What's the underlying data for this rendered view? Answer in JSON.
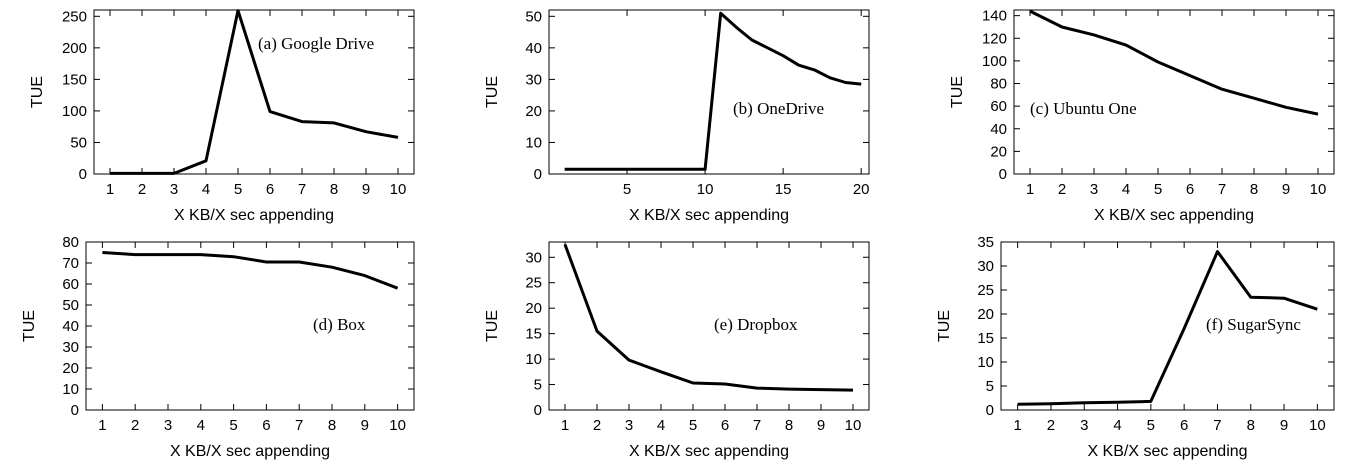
{
  "chart_data": [
    {
      "type": "line",
      "title": "(a) Google Drive",
      "xlabel": "X KB/X sec appending",
      "ylabel": "TUE",
      "xlim": [
        0.5,
        10.5
      ],
      "ylim": [
        0,
        260
      ],
      "xticks": [
        1,
        2,
        3,
        4,
        5,
        6,
        7,
        8,
        9,
        10
      ],
      "yticks": [
        0,
        50,
        100,
        150,
        200,
        250
      ],
      "x": [
        1,
        2,
        3,
        4,
        5,
        6,
        7,
        8,
        9,
        10
      ],
      "y": [
        1,
        1,
        1,
        21,
        259,
        99,
        83,
        81,
        67,
        58
      ],
      "grid": false
    },
    {
      "type": "line",
      "title": "(b) OneDrive",
      "xlabel": "X KB/X sec appending",
      "ylabel": "TUE",
      "xlim": [
        0,
        20.5
      ],
      "ylim": [
        0,
        52
      ],
      "xticks": [
        5,
        10,
        15,
        20
      ],
      "yticks": [
        0,
        10,
        20,
        30,
        40,
        50
      ],
      "x": [
        1,
        2,
        3,
        4,
        5,
        6,
        7,
        8,
        9,
        10,
        11,
        12,
        13,
        14,
        15,
        16,
        17,
        18,
        19,
        20
      ],
      "y": [
        1.5,
        1.5,
        1.5,
        1.5,
        1.5,
        1.5,
        1.5,
        1.5,
        1.5,
        1.5,
        51,
        46.5,
        42.5,
        40,
        37.5,
        34.5,
        33,
        30.5,
        29,
        28.5
      ],
      "grid": false
    },
    {
      "type": "line",
      "title": "(c) Ubuntu One",
      "xlabel": "X KB/X sec appending",
      "ylabel": "TUE",
      "xlim": [
        0.5,
        10.5
      ],
      "ylim": [
        0,
        145
      ],
      "xticks": [
        1,
        2,
        3,
        4,
        5,
        6,
        7,
        8,
        9,
        10
      ],
      "yticks": [
        0,
        20,
        40,
        60,
        80,
        100,
        120,
        140
      ],
      "x": [
        1,
        2,
        3,
        4,
        5,
        6,
        7,
        8,
        9,
        10
      ],
      "y": [
        144,
        130,
        123,
        114,
        99,
        87,
        75,
        67,
        59,
        53
      ],
      "grid": false
    },
    {
      "type": "line",
      "title": "(d) Box",
      "xlabel": "X KB/X sec appending",
      "ylabel": "TUE",
      "xlim": [
        0.5,
        10.5
      ],
      "ylim": [
        0,
        80
      ],
      "xticks": [
        1,
        2,
        3,
        4,
        5,
        6,
        7,
        8,
        9,
        10
      ],
      "yticks": [
        0,
        10,
        20,
        30,
        40,
        50,
        60,
        70,
        80
      ],
      "x": [
        1,
        2,
        3,
        4,
        5,
        6,
        7,
        8,
        9,
        10
      ],
      "y": [
        75,
        74,
        74,
        74,
        73,
        70.5,
        70.5,
        68,
        64,
        58
      ],
      "grid": false
    },
    {
      "type": "line",
      "title": "(e) Dropbox",
      "xlabel": "X KB/X sec appending",
      "ylabel": "TUE",
      "xlim": [
        0.5,
        10.5
      ],
      "ylim": [
        0,
        33
      ],
      "xticks": [
        1,
        2,
        3,
        4,
        5,
        6,
        7,
        8,
        9,
        10
      ],
      "yticks": [
        0,
        5,
        10,
        15,
        20,
        25,
        30
      ],
      "x": [
        1,
        2,
        3,
        4,
        5,
        6,
        7,
        8,
        9,
        10
      ],
      "y": [
        32.5,
        15.5,
        9.8,
        7.5,
        5.3,
        5.1,
        4.3,
        4.1,
        4.0,
        3.9
      ],
      "grid": false
    },
    {
      "type": "line",
      "title": "(f) SugarSync",
      "xlabel": "X KB/X sec appending",
      "ylabel": "TUE",
      "xlim": [
        0.5,
        10.5
      ],
      "ylim": [
        0,
        35
      ],
      "xticks": [
        1,
        2,
        3,
        4,
        5,
        6,
        7,
        8,
        9,
        10
      ],
      "yticks": [
        0,
        5,
        10,
        15,
        20,
        25,
        30,
        35
      ],
      "x": [
        1,
        2,
        3,
        4,
        5,
        6,
        7,
        8,
        9,
        10
      ],
      "y": [
        1.2,
        1.3,
        1.5,
        1.6,
        1.8,
        17,
        33,
        23.5,
        23.3,
        21
      ],
      "grid": false
    }
  ]
}
